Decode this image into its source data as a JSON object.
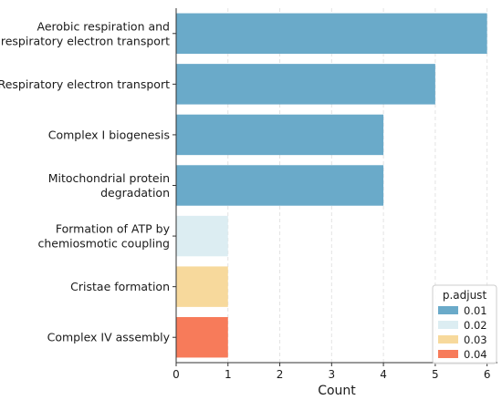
{
  "chart_data": {
    "type": "bar",
    "orientation": "horizontal",
    "categories": [
      [
        "Aerobic respiration and",
        "respiratory electron transport"
      ],
      [
        "Respiratory electron transport"
      ],
      [
        "Complex I biogenesis"
      ],
      [
        "Mitochondrial protein",
        "degradation"
      ],
      [
        "Formation of ATP by",
        "chemiosmotic coupling"
      ],
      [
        "Cristae formation"
      ],
      [
        "Complex IV assembly"
      ]
    ],
    "values": [
      6,
      5,
      4,
      4,
      1,
      1,
      1
    ],
    "p_adjust": [
      0.01,
      0.01,
      0.01,
      0.01,
      0.02,
      0.03,
      0.04
    ],
    "xlabel": "Count",
    "ylabel": "",
    "title": "",
    "xlim": [
      0,
      6.2
    ],
    "xticks": [
      "0",
      "1",
      "2",
      "3",
      "4",
      "5",
      "6"
    ],
    "grid": "vertical dashed",
    "legend": {
      "title": "p.adjust",
      "placement": "bottom-right",
      "entries": [
        {
          "label": "0.01",
          "color": "#6aaac9"
        },
        {
          "label": "0.02",
          "color": "#dcedf2"
        },
        {
          "label": "0.03",
          "color": "#f7d99c"
        },
        {
          "label": "0.04",
          "color": "#f77b5a"
        }
      ]
    }
  }
}
